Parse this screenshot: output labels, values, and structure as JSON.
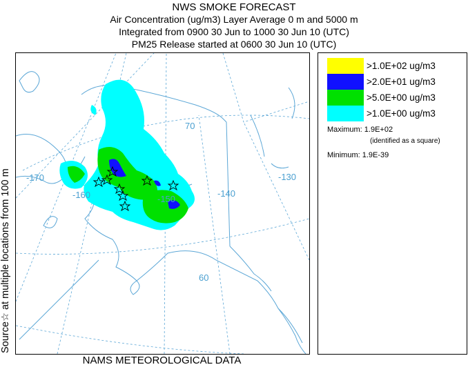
{
  "header": {
    "line1": "NWS SMOKE FORECAST",
    "line2": "Air Concentration (ug/m3) Layer Average    0 m and  5000 m",
    "line3": "Integrated from 0900 30 Jun to 1000 30 Jun 10 (UTC)",
    "line4": "PM25 Release started at 0600 30 Jun 10 (UTC)"
  },
  "side_label": "Source☆ at multiple locations   from   100 m",
  "footer": "NAMS METEOROLOGICAL DATA",
  "map": {
    "lon_labels": [
      "-170",
      "-160",
      "-150",
      "-140",
      "-130"
    ],
    "lat_labels": [
      "70",
      "60"
    ],
    "colors": {
      "land": "#5aa6d6",
      "grid": "#5aa6d6",
      "level1": "#00ffff",
      "level2": "#00e000",
      "level3": "#1010ff",
      "level4": "#ffff00"
    }
  },
  "legend": {
    "items": [
      {
        "label": ">1.0E+02 ug/m3",
        "color": "#ffff00"
      },
      {
        "label": ">2.0E+01 ug/m3",
        "color": "#1010ff"
      },
      {
        "label": ">5.0E+00 ug/m3",
        "color": "#00e000"
      },
      {
        "label": ">1.0E+00 ug/m3",
        "color": "#00ffff"
      }
    ],
    "maximum": "Maximum: 1.9E+02",
    "maximum_note": "(identified as a square)",
    "minimum": "Minimum: 1.9E-39"
  }
}
